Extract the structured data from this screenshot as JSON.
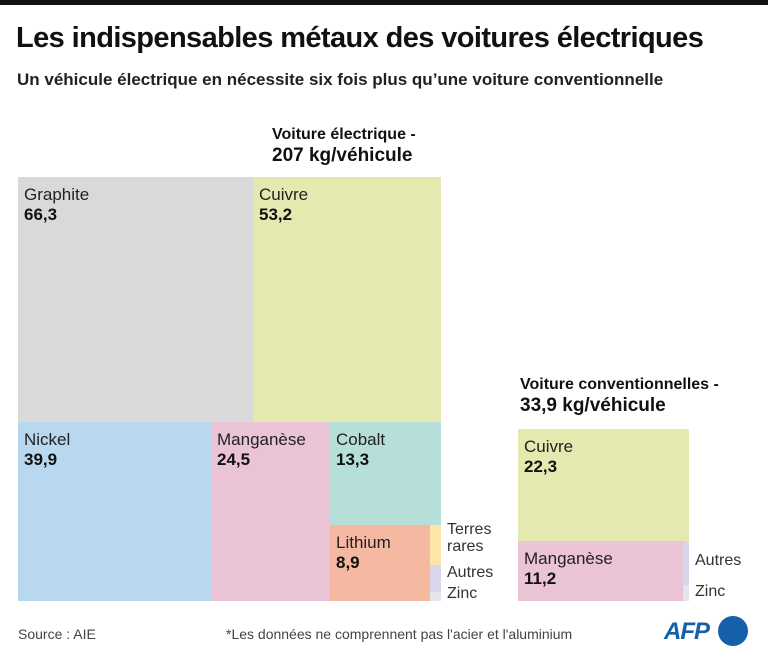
{
  "header": {
    "title": "Les indispensables métaux des voitures électriques",
    "subtitle": "Un véhicule électrique en nécessite six fois plus qu’une voiture conventionnelle"
  },
  "chart_data": [
    {
      "type": "treemap",
      "title_line1": "Voiture électrique -",
      "title_line2": "207 kg/véhicule",
      "total": 207,
      "unit": "kg/véhicule",
      "items": [
        {
          "label": "Graphite",
          "value": 66.3,
          "display": "66,3",
          "color": "#d9d9d9"
        },
        {
          "label": "Cuivre",
          "value": 53.2,
          "display": "53,2",
          "color": "#e4eaaf"
        },
        {
          "label": "Nickel",
          "value": 39.9,
          "display": "39,9",
          "color": "#b7d8ee"
        },
        {
          "label": "Manganèse",
          "value": 24.5,
          "display": "24,5",
          "color": "#eac4d5"
        },
        {
          "label": "Cobalt",
          "value": 13.3,
          "display": "13,3",
          "color": "#b7dfd9"
        },
        {
          "label": "Lithium",
          "value": 8.9,
          "display": "8,9",
          "color": "#f5b8a0"
        },
        {
          "label": "Terres rares",
          "value": null,
          "display": "",
          "color": "#fbe6a8"
        },
        {
          "label": "Autres",
          "value": null,
          "display": "",
          "color": "#d9d6ea"
        },
        {
          "label": "Zinc",
          "value": null,
          "display": "",
          "color": "#e4e4ea"
        }
      ]
    },
    {
      "type": "treemap",
      "title_line1": "Voiture conventionnelles -",
      "title_line2": "33,9 kg/véhicule",
      "total": 33.9,
      "unit": "kg/véhicule",
      "items": [
        {
          "label": "Cuivre",
          "value": 22.3,
          "display": "22,3",
          "color": "#e4eaaf"
        },
        {
          "label": "Manganèse",
          "value": 11.2,
          "display": "11,2",
          "color": "#eac4d5"
        },
        {
          "label": "Autres",
          "value": null,
          "display": "",
          "color": "#d9d6ea"
        },
        {
          "label": "Zinc",
          "value": null,
          "display": "",
          "color": "#e4e4ea"
        }
      ]
    }
  ],
  "footer": {
    "source": "Source : AIE",
    "note": "*Les données ne comprennent pas l'acier et l'aluminium",
    "logo": "AFP"
  }
}
